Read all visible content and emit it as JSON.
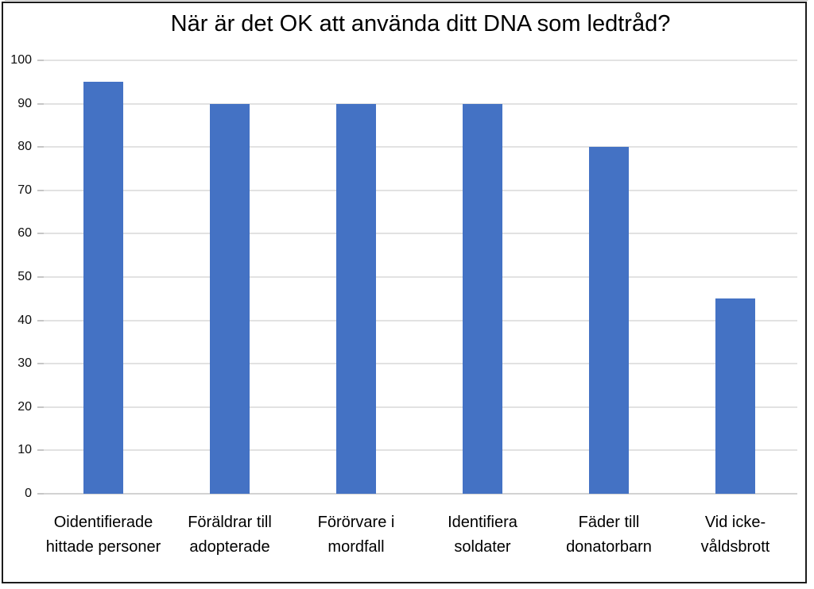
{
  "chart_data": {
    "type": "bar",
    "title": "När är det OK att använda ditt DNA som ledtråd?",
    "categories": [
      "Oidentifierade hittade personer",
      "Föräldrar till adopterade",
      "Förörvare i mordfall",
      "Identifiera soldater",
      "Fäder till donatorbarn",
      "Vid icke-våldsbrott"
    ],
    "values": [
      95,
      90,
      90,
      90,
      80,
      45
    ],
    "xlabel": "",
    "ylabel": "",
    "ylim": [
      0,
      100
    ],
    "yticks": [
      0,
      10,
      20,
      30,
      40,
      50,
      60,
      70,
      80,
      90,
      100
    ],
    "grid": true,
    "legend": "none",
    "bar_color": "#4472C4",
    "gridline_color": "#e2e2e2",
    "axis_line_color": "#d2d2d2",
    "title_color": "#000000",
    "label_color": "#000000",
    "frame_border_color": "#1c1c1c"
  }
}
